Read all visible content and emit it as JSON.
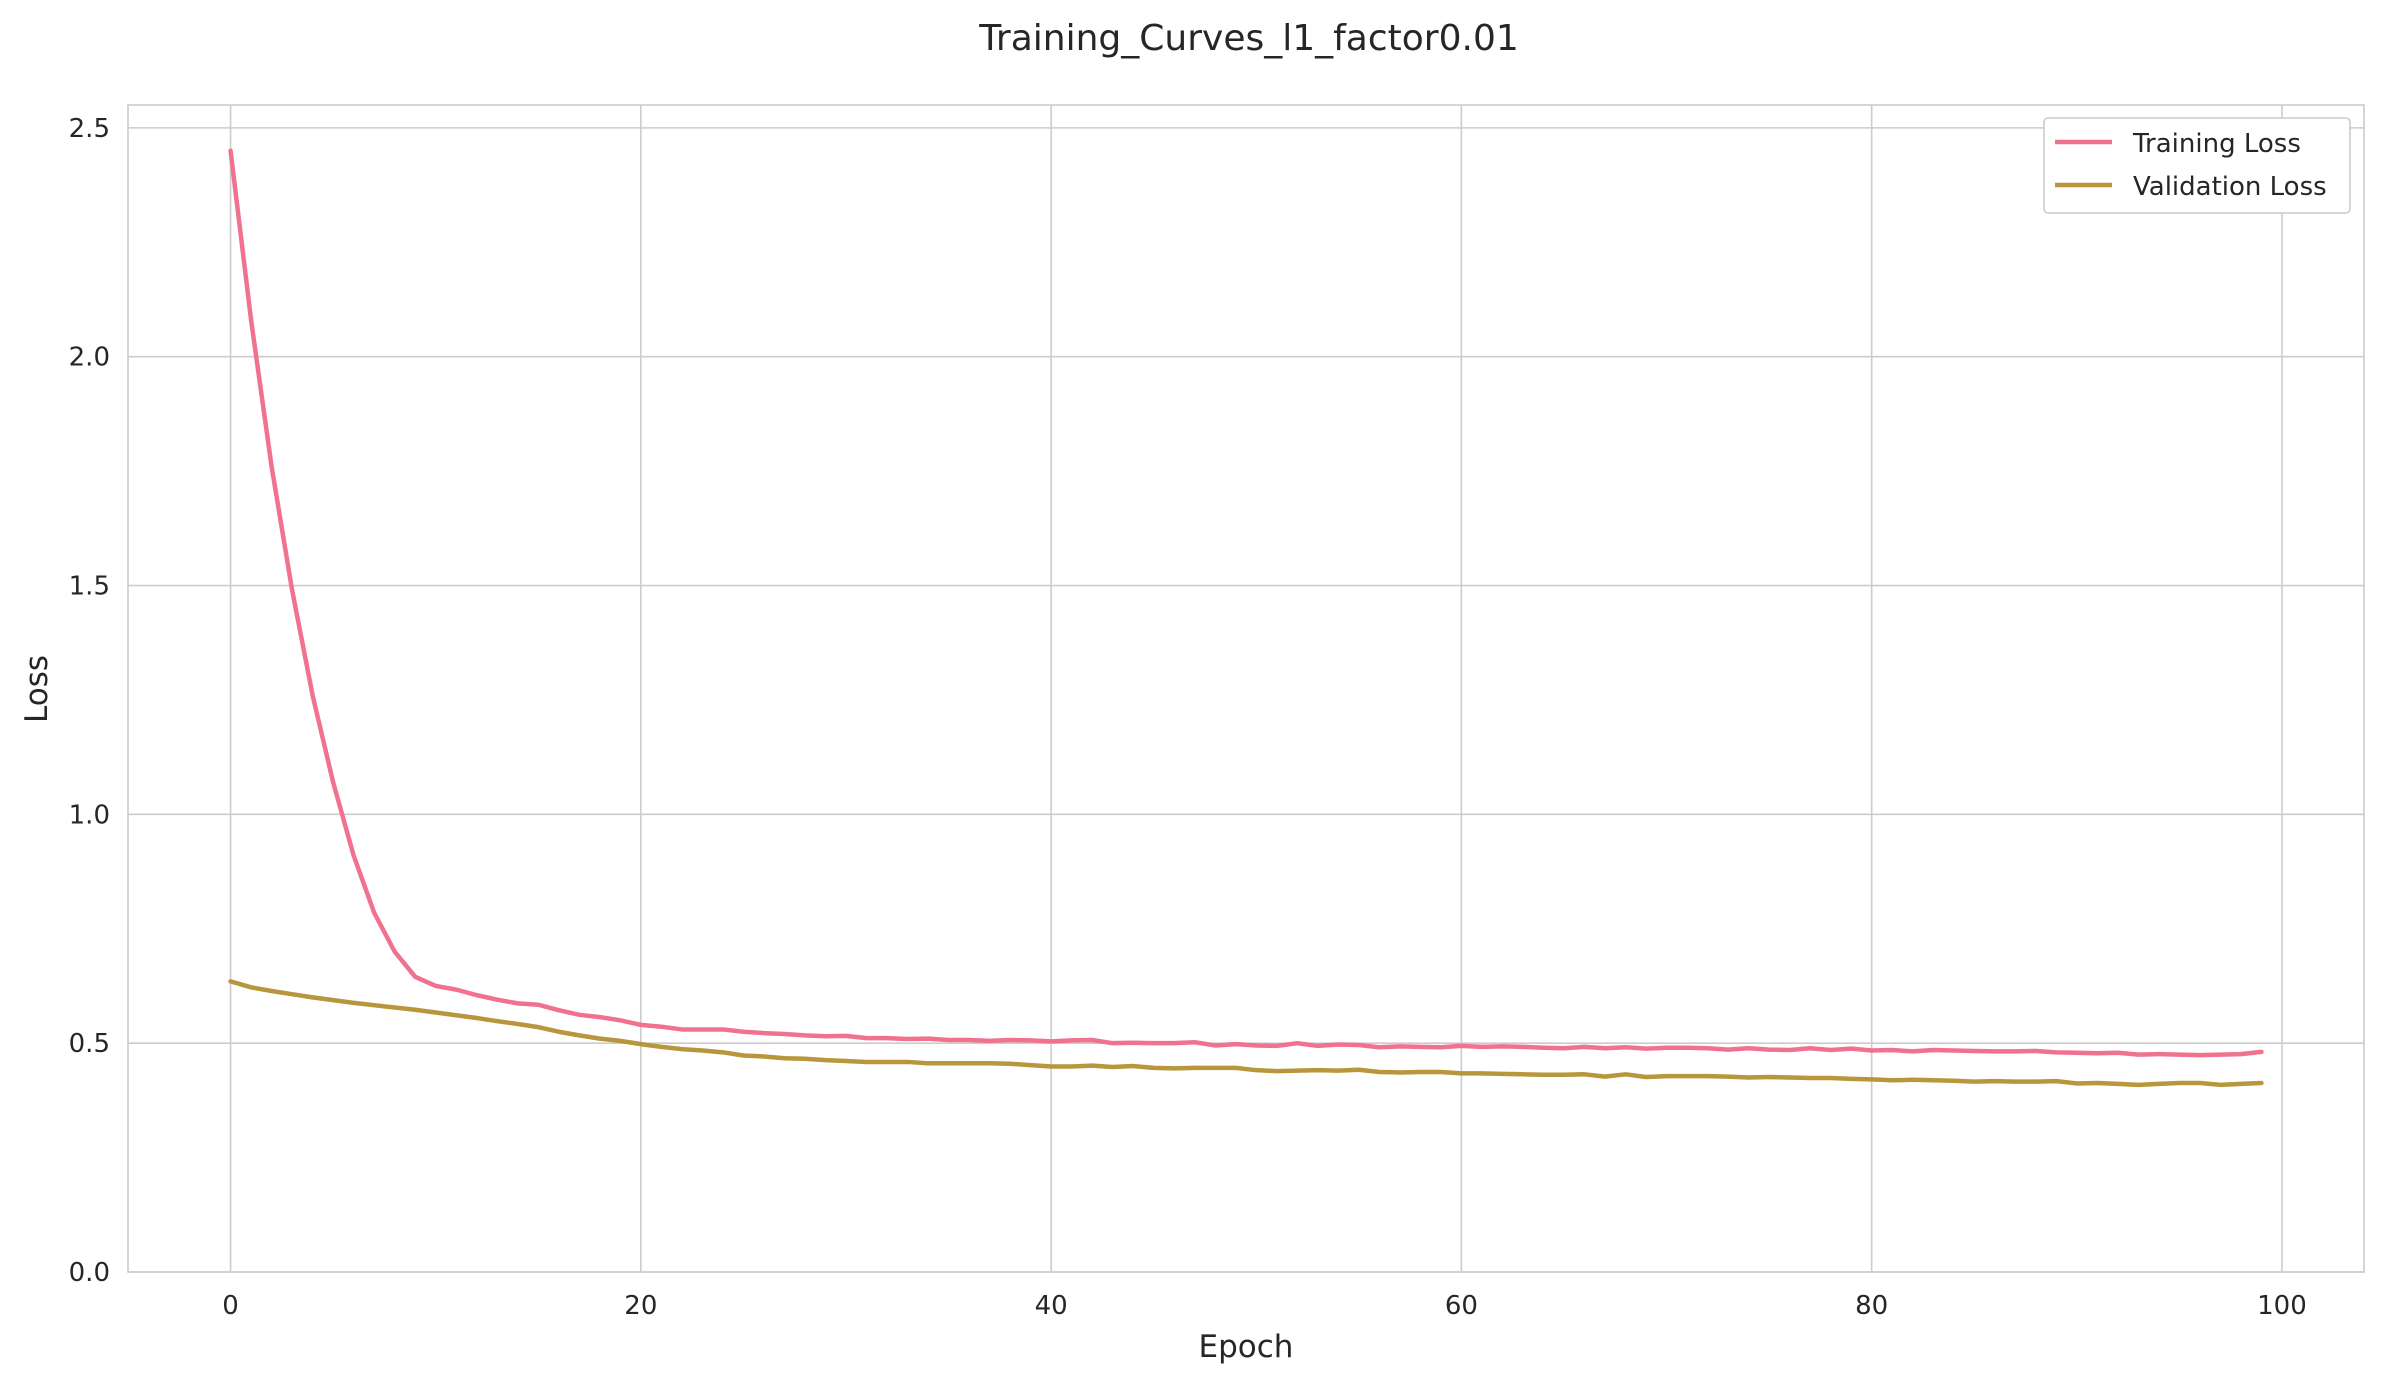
{
  "chart_data": {
    "type": "line",
    "title": "Training_Curves_l1_factor0.01",
    "xlabel": "Epoch",
    "ylabel": "Loss",
    "xlim": [
      -5,
      104
    ],
    "ylim": [
      0,
      2.55
    ],
    "xticks": [
      0,
      20,
      40,
      60,
      80,
      100
    ],
    "xtick_labels": [
      "0",
      "20",
      "40",
      "60",
      "80",
      "100"
    ],
    "yticks": [
      0,
      0.5,
      1.0,
      1.5,
      2.0,
      2.5
    ],
    "ytick_labels": [
      "0.0",
      "0.5",
      "1.0",
      "1.5",
      "2.0",
      "2.5"
    ],
    "grid": true,
    "legend_position": "top-right",
    "series": [
      {
        "name": "Training Loss",
        "color": "#f0728f",
        "x": [
          0,
          1,
          2,
          3,
          4,
          5,
          6,
          7,
          8,
          9,
          10,
          11,
          12,
          13,
          14,
          15,
          16,
          17,
          18,
          19,
          20,
          21,
          22,
          23,
          24,
          25,
          26,
          27,
          28,
          29,
          30,
          31,
          32,
          33,
          34,
          35,
          36,
          37,
          38,
          39,
          40,
          41,
          42,
          43,
          44,
          45,
          46,
          47,
          48,
          49,
          50,
          51,
          52,
          53,
          54,
          55,
          56,
          57,
          58,
          59,
          60,
          61,
          62,
          63,
          64,
          65,
          66,
          67,
          68,
          69,
          70,
          71,
          72,
          73,
          74,
          75,
          76,
          77,
          78,
          79,
          80,
          81,
          82,
          83,
          84,
          85,
          86,
          87,
          88,
          89,
          90,
          91,
          92,
          93,
          94,
          95,
          96,
          97,
          98,
          99
        ],
        "values": [
          2.45,
          2.08,
          1.76,
          1.49,
          1.26,
          1.07,
          0.91,
          0.785,
          0.7,
          0.645,
          0.625,
          0.617,
          0.605,
          0.595,
          0.587,
          0.584,
          0.572,
          0.562,
          0.557,
          0.55,
          0.54,
          0.536,
          0.53,
          0.53,
          0.53,
          0.525,
          0.522,
          0.52,
          0.517,
          0.515,
          0.516,
          0.511,
          0.511,
          0.509,
          0.51,
          0.507,
          0.507,
          0.505,
          0.507,
          0.506,
          0.504,
          0.506,
          0.507,
          0.5,
          0.501,
          0.5,
          0.5,
          0.502,
          0.495,
          0.498,
          0.495,
          0.494,
          0.5,
          0.494,
          0.497,
          0.496,
          0.491,
          0.493,
          0.492,
          0.491,
          0.494,
          0.492,
          0.493,
          0.492,
          0.49,
          0.489,
          0.492,
          0.489,
          0.491,
          0.488,
          0.49,
          0.49,
          0.489,
          0.486,
          0.489,
          0.486,
          0.485,
          0.489,
          0.485,
          0.488,
          0.484,
          0.485,
          0.482,
          0.485,
          0.484,
          0.483,
          0.482,
          0.482,
          0.483,
          0.48,
          0.479,
          0.478,
          0.479,
          0.475,
          0.476,
          0.475,
          0.474,
          0.475,
          0.476,
          0.481
        ]
      },
      {
        "name": "Validation Loss",
        "color": "#b8963b",
        "x": [
          0,
          1,
          2,
          3,
          4,
          5,
          6,
          7,
          8,
          9,
          10,
          11,
          12,
          13,
          14,
          15,
          16,
          17,
          18,
          19,
          20,
          21,
          22,
          23,
          24,
          25,
          26,
          27,
          28,
          29,
          30,
          31,
          32,
          33,
          34,
          35,
          36,
          37,
          38,
          39,
          40,
          41,
          42,
          43,
          44,
          45,
          46,
          47,
          48,
          49,
          50,
          51,
          52,
          53,
          54,
          55,
          56,
          57,
          58,
          59,
          60,
          61,
          62,
          63,
          64,
          65,
          66,
          67,
          68,
          69,
          70,
          71,
          72,
          73,
          74,
          75,
          76,
          77,
          78,
          79,
          80,
          81,
          82,
          83,
          84,
          85,
          86,
          87,
          88,
          89,
          90,
          91,
          92,
          93,
          94,
          95,
          96,
          97,
          98,
          99
        ],
        "values": [
          0.635,
          0.622,
          0.614,
          0.607,
          0.6,
          0.594,
          0.588,
          0.583,
          0.578,
          0.573,
          0.567,
          0.561,
          0.555,
          0.548,
          0.542,
          0.535,
          0.525,
          0.517,
          0.51,
          0.505,
          0.498,
          0.492,
          0.487,
          0.484,
          0.48,
          0.473,
          0.471,
          0.467,
          0.466,
          0.463,
          0.461,
          0.459,
          0.459,
          0.459,
          0.456,
          0.456,
          0.456,
          0.456,
          0.455,
          0.452,
          0.449,
          0.449,
          0.451,
          0.448,
          0.45,
          0.446,
          0.445,
          0.446,
          0.446,
          0.446,
          0.441,
          0.439,
          0.44,
          0.441,
          0.44,
          0.442,
          0.437,
          0.436,
          0.437,
          0.437,
          0.434,
          0.434,
          0.433,
          0.432,
          0.431,
          0.431,
          0.432,
          0.427,
          0.432,
          0.426,
          0.428,
          0.428,
          0.428,
          0.427,
          0.425,
          0.426,
          0.425,
          0.424,
          0.424,
          0.422,
          0.421,
          0.419,
          0.42,
          0.419,
          0.418,
          0.416,
          0.417,
          0.416,
          0.416,
          0.417,
          0.412,
          0.413,
          0.411,
          0.409,
          0.411,
          0.413,
          0.413,
          0.409,
          0.411,
          0.413
        ]
      }
    ]
  }
}
